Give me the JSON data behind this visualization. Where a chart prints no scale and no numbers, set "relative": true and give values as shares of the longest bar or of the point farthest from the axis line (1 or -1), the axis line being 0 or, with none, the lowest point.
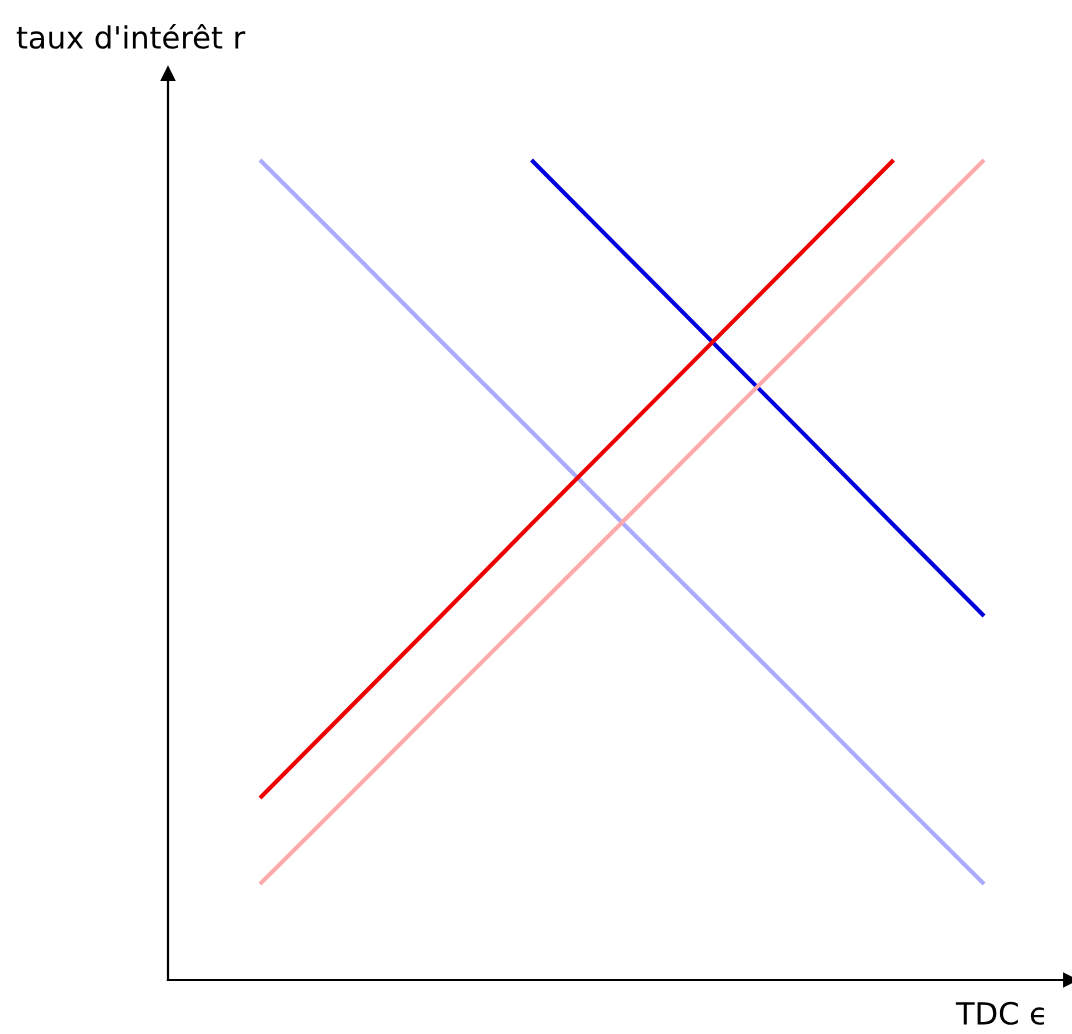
{
  "chart_data": {
    "type": "line",
    "relative": true,
    "xlabel": "TDC ϵ",
    "ylabel": "taux d'intérêt r",
    "legend": false,
    "marker": "none",
    "line_style": "solid",
    "categories": [
      null,
      null,
      null,
      null,
      null,
      null,
      null,
      null,
      null
    ],
    "series": [
      {
        "color": "#aaaaff",
        "values": [
          1,
          0.89,
          0.779,
          0.669,
          0.558,
          0.448,
          0.338,
          0.227,
          0.117
        ]
      },
      {
        "color": "#0000dd",
        "values": [
          null,
          null,
          null,
          1,
          0.889,
          0.778,
          0.667,
          0.555,
          0.444
        ]
      },
      {
        "color": "#ee0000",
        "values": [
          0.222,
          0.333,
          0.444,
          0.556,
          0.667,
          0.778,
          0.889,
          1,
          null
        ]
      },
      {
        "color": "#ffaaaa",
        "values": [
          0.117,
          0.227,
          0.338,
          0.448,
          0.558,
          0.669,
          0.779,
          0.89,
          1
        ]
      }
    ]
  }
}
